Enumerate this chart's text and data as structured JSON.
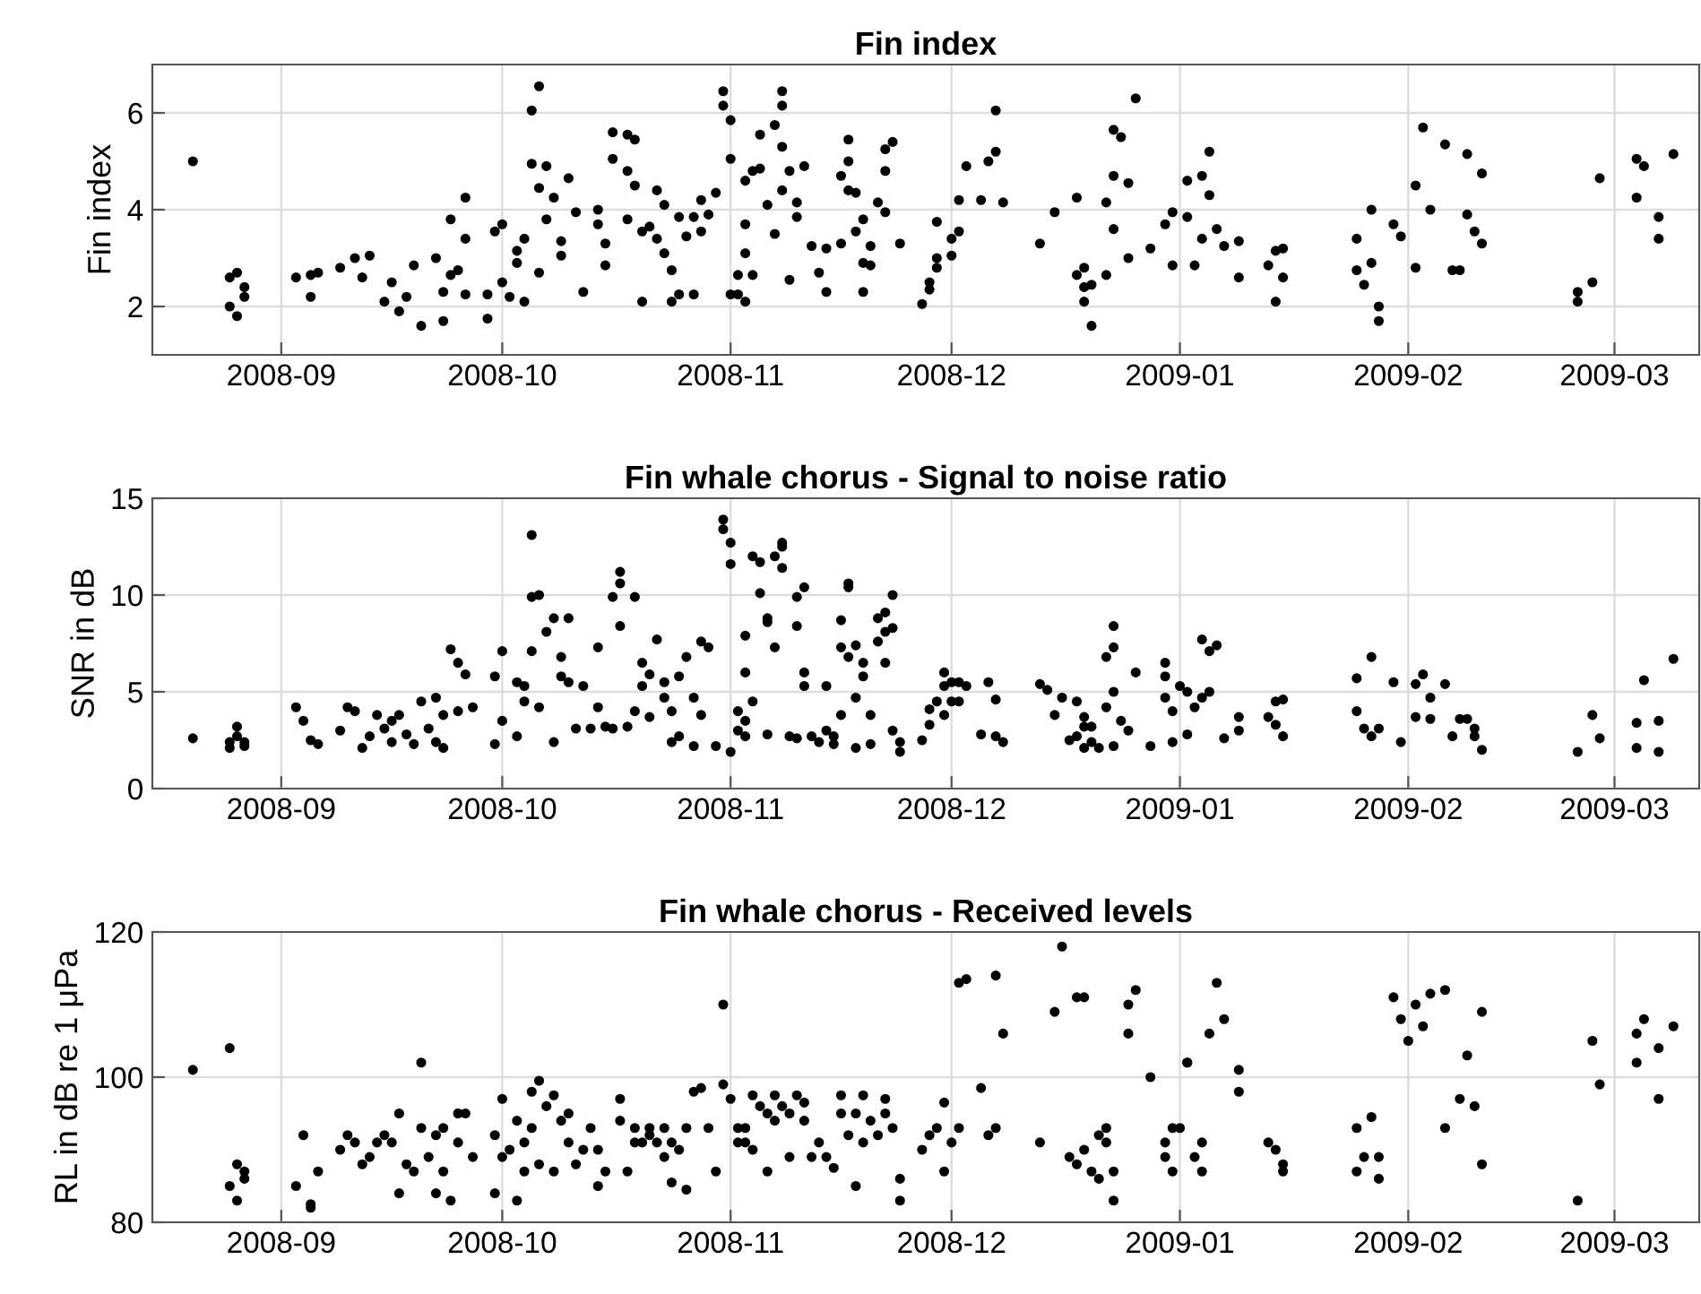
{
  "chart_data": [
    {
      "type": "scatter",
      "title": "Fin index",
      "ylabel": "Fin index",
      "xlim": [
        "2008-08-14T12:00",
        "2009-03-12T12:00"
      ],
      "ylim": [
        1,
        7
      ],
      "yticks": [
        2,
        4,
        6
      ],
      "xticks": [
        {
          "value": "2008-09-01",
          "label": "2008-09"
        },
        {
          "value": "2008-10-01",
          "label": "2008-10"
        },
        {
          "value": "2008-11-01",
          "label": "2008-11"
        },
        {
          "value": "2008-12-01",
          "label": "2008-12"
        },
        {
          "value": "2009-01-01",
          "label": "2009-01"
        },
        {
          "value": "2009-02-01",
          "label": "2009-02"
        },
        {
          "value": "2009-03-01",
          "label": "2009-03"
        }
      ],
      "grid": true,
      "marker": "circle",
      "series": [
        {
          "color": "#000000",
          "x": [
            "2008-08-20",
            "2008-08-25",
            "2008-08-27",
            "2008-08-27",
            "2008-08-25",
            "2008-08-26",
            "2008-08-26",
            "2008-09-03",
            "2008-09-05",
            "2008-09-06",
            "2008-09-05",
            "2008-09-09",
            "2008-09-11",
            "2008-09-13",
            "2008-09-12",
            "2008-09-15",
            "2008-09-16",
            "2008-09-17",
            "2008-09-18",
            "2008-09-19",
            "2008-09-20",
            "2008-09-22",
            "2008-09-23",
            "2008-09-23",
            "2008-09-24",
            "2008-09-24",
            "2008-09-25",
            "2008-09-26",
            "2008-09-26",
            "2008-09-26",
            "2008-09-29",
            "2008-09-29",
            "2008-09-30",
            "2008-10-01",
            "2008-10-01",
            "2008-10-02",
            "2008-10-03",
            "2008-10-03",
            "2008-10-04",
            "2008-10-04",
            "2008-10-05",
            "2008-10-05",
            "2008-10-06",
            "2008-10-06",
            "2008-10-06",
            "2008-10-07",
            "2008-10-07",
            "2008-10-08",
            "2008-10-09",
            "2008-10-09",
            "2008-10-10",
            "2008-10-11",
            "2008-10-12",
            "2008-10-14",
            "2008-10-14",
            "2008-10-15",
            "2008-10-15",
            "2008-10-16",
            "2008-10-16",
            "2008-10-18",
            "2008-10-18",
            "2008-10-19",
            "2008-10-19",
            "2008-10-18",
            "2008-10-20",
            "2008-10-20",
            "2008-10-21",
            "2008-10-22",
            "2008-10-22",
            "2008-10-23",
            "2008-10-23",
            "2008-10-24",
            "2008-10-24",
            "2008-10-25",
            "2008-10-25",
            "2008-10-26",
            "2008-10-27",
            "2008-10-27",
            "2008-10-28",
            "2008-10-28",
            "2008-10-29",
            "2008-10-30",
            "2008-10-31",
            "2008-10-31",
            "2008-11-01",
            "2008-11-01",
            "2008-11-01",
            "2008-11-02",
            "2008-11-02",
            "2008-11-03",
            "2008-11-03",
            "2008-11-03",
            "2008-11-04",
            "2008-11-03",
            "2008-11-04",
            "2008-11-05",
            "2008-11-05",
            "2008-11-06",
            "2008-11-07",
            "2008-11-07",
            "2008-11-08",
            "2008-11-08",
            "2008-11-08",
            "2008-11-08",
            "2008-11-09",
            "2008-11-09",
            "2008-11-10",
            "2008-11-10",
            "2008-11-11",
            "2008-11-12",
            "2008-11-13",
            "2008-11-14",
            "2008-11-14",
            "2008-11-16",
            "2008-11-16",
            "2008-11-17",
            "2008-11-17",
            "2008-11-17",
            "2008-11-18",
            "2008-11-18",
            "2008-11-19",
            "2008-11-19",
            "2008-11-20",
            "2008-11-20",
            "2008-11-19",
            "2008-11-21",
            "2008-11-22",
            "2008-11-22",
            "2008-11-22",
            "2008-11-23",
            "2008-11-24",
            "2008-11-27",
            "2008-11-28",
            "2008-11-29",
            "2008-11-29",
            "2008-11-28",
            "2008-11-29",
            "2008-12-01",
            "2008-12-01",
            "2008-12-02",
            "2008-12-02",
            "2008-12-03",
            "2008-12-05",
            "2008-12-06",
            "2008-12-07",
            "2008-12-07",
            "2008-12-08",
            "2008-12-13",
            "2008-12-15",
            "2008-12-18",
            "2008-12-18",
            "2008-12-19",
            "2008-12-19",
            "2008-12-19",
            "2008-12-20",
            "2008-12-20",
            "2008-12-22",
            "2008-12-22",
            "2008-12-23",
            "2008-12-23",
            "2008-12-23",
            "2008-12-24",
            "2008-12-25",
            "2008-12-25",
            "2008-12-26",
            "2008-12-28",
            "2008-12-30",
            "2008-12-31",
            "2008-12-31",
            "2009-01-02",
            "2009-01-02",
            "2009-01-03",
            "2009-01-04",
            "2009-01-04",
            "2009-01-05",
            "2009-01-05",
            "2009-01-06",
            "2009-01-07",
            "2009-01-09",
            "2009-01-09",
            "2009-01-14",
            "2009-01-13",
            "2009-01-14",
            "2009-01-15",
            "2009-01-15",
            "2009-01-25",
            "2009-01-25",
            "2009-01-26",
            "2009-01-27",
            "2009-01-27",
            "2009-01-28",
            "2009-01-28",
            "2009-01-30",
            "2009-01-31",
            "2009-02-02",
            "2009-02-02",
            "2009-02-03",
            "2009-02-04",
            "2009-02-06",
            "2009-02-07",
            "2009-02-08",
            "2009-02-09",
            "2009-02-09",
            "2009-02-10",
            "2009-02-11",
            "2009-02-11",
            "2009-02-24",
            "2009-02-24",
            "2009-02-26",
            "2009-02-27",
            "2009-03-04",
            "2009-03-04",
            "2009-03-05",
            "2009-03-07",
            "2009-03-07",
            "2009-03-09"
          ],
          "values": [
            5.0,
            2.6,
            2.4,
            2.2,
            2.0,
            1.8,
            2.7,
            2.6,
            2.65,
            2.7,
            2.2,
            2.8,
            3.0,
            3.05,
            2.6,
            2.1,
            2.5,
            1.9,
            2.2,
            2.85,
            1.6,
            3.0,
            1.7,
            2.3,
            2.65,
            3.8,
            2.75,
            4.25,
            2.25,
            3.4,
            2.25,
            1.75,
            3.55,
            3.7,
            2.5,
            2.2,
            2.9,
            3.15,
            2.1,
            3.4,
            4.95,
            6.05,
            4.45,
            6.55,
            2.7,
            4.9,
            3.8,
            4.25,
            3.05,
            3.35,
            4.65,
            3.95,
            2.3,
            3.7,
            4.0,
            3.3,
            2.85,
            5.05,
            5.6,
            5.55,
            4.8,
            5.45,
            4.5,
            3.8,
            3.55,
            2.1,
            3.65,
            3.4,
            4.4,
            4.1,
            3.1,
            2.1,
            2.75,
            3.85,
            2.25,
            3.45,
            2.25,
            3.85,
            4.2,
            3.55,
            3.9,
            4.35,
            6.45,
            6.15,
            5.85,
            5.05,
            2.25,
            2.25,
            2.65,
            3.7,
            3.1,
            2.1,
            2.65,
            4.6,
            4.8,
            5.55,
            4.85,
            4.1,
            3.5,
            5.75,
            4.4,
            6.45,
            6.15,
            5.3,
            4.8,
            2.55,
            4.15,
            3.85,
            4.9,
            3.25,
            2.7,
            3.2,
            2.3,
            3.3,
            4.7,
            5.0,
            5.45,
            4.4,
            3.55,
            4.35,
            3.8,
            2.9,
            3.25,
            2.85,
            2.3,
            4.15,
            4.8,
            5.25,
            3.95,
            5.4,
            3.3,
            2.05,
            2.35,
            2.8,
            3.75,
            2.5,
            3.0,
            3.05,
            3.4,
            3.55,
            4.2,
            4.9,
            4.2,
            5.0,
            6.05,
            5.2,
            4.15,
            3.3,
            3.95,
            4.25,
            2.65,
            2.8,
            2.4,
            2.1,
            1.6,
            2.45,
            2.65,
            4.15,
            4.7,
            3.6,
            5.65,
            5.5,
            4.55,
            3.0,
            6.3,
            3.2,
            3.7,
            3.95,
            2.85,
            3.85,
            4.6,
            2.85,
            3.4,
            4.7,
            5.2,
            4.3,
            3.6,
            3.25,
            3.35,
            2.6,
            2.1,
            2.85,
            3.15,
            2.6,
            3.2,
            3.4,
            2.75,
            2.45,
            4.0,
            2.9,
            2.0,
            1.7,
            3.7,
            3.45,
            4.5,
            2.8,
            5.7,
            4.0,
            5.35,
            2.75,
            2.75,
            5.15,
            3.9,
            3.55,
            3.3,
            4.75,
            2.3,
            2.1,
            2.5,
            4.65,
            5.05,
            4.25,
            4.9,
            3.85,
            3.4,
            5.15
          ]
        }
      ]
    },
    {
      "type": "scatter",
      "title": "Fin whale chorus - Signal to noise ratio",
      "ylabel": "SNR in dB",
      "xlim": [
        "2008-08-14T12:00",
        "2009-03-12T12:00"
      ],
      "ylim": [
        0,
        15
      ],
      "yticks": [
        0,
        5,
        10,
        15
      ],
      "xticks": [
        {
          "value": "2008-09-01",
          "label": "2008-09"
        },
        {
          "value": "2008-10-01",
          "label": "2008-10"
        },
        {
          "value": "2008-11-01",
          "label": "2008-11"
        },
        {
          "value": "2008-12-01",
          "label": "2008-12"
        },
        {
          "value": "2009-01-01",
          "label": "2009-01"
        },
        {
          "value": "2009-02-01",
          "label": "2009-02"
        },
        {
          "value": "2009-03-01",
          "label": "2009-03"
        }
      ],
      "grid": true,
      "marker": "circle",
      "series": [
        {
          "color": "#000000",
          "x": [
            "2008-08-20",
            "2008-08-25",
            "2008-08-25",
            "2008-08-26",
            "2008-08-26",
            "2008-08-27",
            "2008-08-27",
            "2008-09-03",
            "2008-09-04",
            "2008-09-05",
            "2008-09-06",
            "2008-09-09",
            "2008-09-10",
            "2008-09-11",
            "2008-09-12",
            "2008-09-13",
            "2008-09-14",
            "2008-09-15",
            "2008-09-16",
            "2008-09-16",
            "2008-09-17",
            "2008-09-18",
            "2008-09-19",
            "2008-09-20",
            "2008-09-21",
            "2008-09-22",
            "2008-09-22",
            "2008-09-23",
            "2008-09-23",
            "2008-09-24",
            "2008-09-25",
            "2008-09-25",
            "2008-09-26",
            "2008-09-27",
            "2008-09-30",
            "2008-09-30",
            "2008-10-01",
            "2008-10-01",
            "2008-10-03",
            "2008-10-03",
            "2008-10-04",
            "2008-10-04",
            "2008-10-05",
            "2008-10-05",
            "2008-10-05",
            "2008-10-06",
            "2008-10-06",
            "2008-10-07",
            "2008-10-08",
            "2008-10-08",
            "2008-10-09",
            "2008-10-09",
            "2008-10-10",
            "2008-10-10",
            "2008-10-11",
            "2008-10-12",
            "2008-10-13",
            "2008-10-14",
            "2008-10-14",
            "2008-10-15",
            "2008-10-16",
            "2008-10-16",
            "2008-10-17",
            "2008-10-17",
            "2008-10-17",
            "2008-10-18",
            "2008-10-19",
            "2008-10-19",
            "2008-10-20",
            "2008-10-20",
            "2008-10-21",
            "2008-10-21",
            "2008-10-22",
            "2008-10-23",
            "2008-10-23",
            "2008-10-24",
            "2008-10-24",
            "2008-10-25",
            "2008-10-25",
            "2008-10-26",
            "2008-10-27",
            "2008-10-27",
            "2008-10-28",
            "2008-10-28",
            "2008-10-29",
            "2008-10-30",
            "2008-10-31",
            "2008-10-31",
            "2008-11-01",
            "2008-11-01",
            "2008-11-01",
            "2008-11-02",
            "2008-11-02",
            "2008-11-03",
            "2008-11-03",
            "2008-11-03",
            "2008-11-03",
            "2008-11-04",
            "2008-11-04",
            "2008-11-05",
            "2008-11-05",
            "2008-11-06",
            "2008-11-06",
            "2008-11-06",
            "2008-11-07",
            "2008-11-07",
            "2008-11-08",
            "2008-11-08",
            "2008-11-08",
            "2008-11-09",
            "2008-11-10",
            "2008-11-10",
            "2008-11-10",
            "2008-11-11",
            "2008-11-11",
            "2008-11-11",
            "2008-11-12",
            "2008-11-13",
            "2008-11-14",
            "2008-11-14",
            "2008-11-15",
            "2008-11-15",
            "2008-11-16",
            "2008-11-16",
            "2008-11-16",
            "2008-11-17",
            "2008-11-17",
            "2008-11-17",
            "2008-11-18",
            "2008-11-18",
            "2008-11-18",
            "2008-11-19",
            "2008-11-19",
            "2008-11-20",
            "2008-11-20",
            "2008-11-21",
            "2008-11-21",
            "2008-11-22",
            "2008-11-22",
            "2008-11-22",
            "2008-11-23",
            "2008-11-23",
            "2008-11-23",
            "2008-11-24",
            "2008-11-24",
            "2008-11-27",
            "2008-11-28",
            "2008-11-28",
            "2008-11-29",
            "2008-11-30",
            "2008-11-30",
            "2008-11-30",
            "2008-12-01",
            "2008-12-01",
            "2008-12-02",
            "2008-12-02",
            "2008-12-03",
            "2008-12-05",
            "2008-12-06",
            "2008-12-07",
            "2008-12-07",
            "2008-12-08",
            "2008-12-13",
            "2008-12-14",
            "2008-12-15",
            "2008-12-16",
            "2008-12-17",
            "2008-12-18",
            "2008-12-18",
            "2008-12-19",
            "2008-12-19",
            "2008-12-19",
            "2008-12-20",
            "2008-12-20",
            "2008-12-21",
            "2008-12-22",
            "2008-12-22",
            "2008-12-23",
            "2008-12-23",
            "2008-12-23",
            "2008-12-23",
            "2008-12-24",
            "2008-12-25",
            "2008-12-26",
            "2008-12-28",
            "2008-12-30",
            "2008-12-30",
            "2008-12-30",
            "2008-12-31",
            "2008-12-31",
            "2009-01-01",
            "2009-01-02",
            "2009-01-02",
            "2009-01-03",
            "2009-01-04",
            "2009-01-04",
            "2009-01-05",
            "2009-01-05",
            "2009-01-06",
            "2009-01-07",
            "2009-01-09",
            "2009-01-09",
            "2009-01-13",
            "2009-01-14",
            "2009-01-14",
            "2009-01-15",
            "2009-01-15",
            "2009-01-25",
            "2009-01-25",
            "2009-01-26",
            "2009-01-27",
            "2009-01-27",
            "2009-01-28",
            "2009-01-30",
            "2009-01-31",
            "2009-02-02",
            "2009-02-02",
            "2009-02-03",
            "2009-02-04",
            "2009-02-04",
            "2009-02-06",
            "2009-02-07",
            "2009-02-08",
            "2009-02-09",
            "2009-02-10",
            "2009-02-10",
            "2009-02-11",
            "2009-02-24",
            "2009-02-26",
            "2009-02-27",
            "2009-03-04",
            "2009-03-04",
            "2009-03-05",
            "2009-03-07",
            "2009-03-07",
            "2009-03-09"
          ],
          "values": [
            2.6,
            2.1,
            2.4,
            3.2,
            2.7,
            2.2,
            2.4,
            4.2,
            3.5,
            2.5,
            2.3,
            3.0,
            4.2,
            4.0,
            2.1,
            2.7,
            3.8,
            3.1,
            3.5,
            2.4,
            3.8,
            2.8,
            2.3,
            4.5,
            3.1,
            4.7,
            2.4,
            3.8,
            2.1,
            7.2,
            4.0,
            6.5,
            5.9,
            4.2,
            2.3,
            5.8,
            7.1,
            3.5,
            2.7,
            5.5,
            4.5,
            5.3,
            7.1,
            9.9,
            13.1,
            10.0,
            4.2,
            8.1,
            8.8,
            2.4,
            6.8,
            5.8,
            8.8,
            5.5,
            3.1,
            5.3,
            3.1,
            7.3,
            4.2,
            3.2,
            3.1,
            9.9,
            10.6,
            11.2,
            8.4,
            3.2,
            9.9,
            4.0,
            5.3,
            6.5,
            5.9,
            3.7,
            7.7,
            5.5,
            4.7,
            2.4,
            4.0,
            5.8,
            2.7,
            6.8,
            4.7,
            2.2,
            7.6,
            3.8,
            7.3,
            2.2,
            13.9,
            13.4,
            12.7,
            11.6,
            1.9,
            4.0,
            3.0,
            3.5,
            2.7,
            6.0,
            7.9,
            4.5,
            12.0,
            11.7,
            10.1,
            8.8,
            8.6,
            2.8,
            12.0,
            7.3,
            12.7,
            12.5,
            11.4,
            2.7,
            9.9,
            2.6,
            8.4,
            6.0,
            10.4,
            5.3,
            2.7,
            2.4,
            3.0,
            5.3,
            2.7,
            2.3,
            7.3,
            8.7,
            3.8,
            10.4,
            10.6,
            6.8,
            2.1,
            7.4,
            4.7,
            6.5,
            5.8,
            2.3,
            3.8,
            7.6,
            8.8,
            9.1,
            8.1,
            6.5,
            8.3,
            10.0,
            3.0,
            1.9,
            2.4,
            2.5,
            3.3,
            4.1,
            4.5,
            6.0,
            3.8,
            5.3,
            5.5,
            4.5,
            5.5,
            4.5,
            5.3,
            2.8,
            5.5,
            4.6,
            2.7,
            2.4,
            5.4,
            5.1,
            3.8,
            4.7,
            2.5,
            4.5,
            2.7,
            3.7,
            3.2,
            2.1,
            3.2,
            2.4,
            2.1,
            4.2,
            6.8,
            8.4,
            7.3,
            5.0,
            2.2,
            3.5,
            3.0,
            6.0,
            2.2,
            5.8,
            6.5,
            4.7,
            4.0,
            2.4,
            5.3,
            2.8,
            5.0,
            4.2,
            4.7,
            7.7,
            7.1,
            5.0,
            7.4,
            2.6,
            3.7,
            3.0,
            3.7,
            4.5,
            3.3,
            2.7,
            4.6,
            5.7,
            4.0,
            3.1,
            6.8,
            2.7,
            3.1,
            5.5,
            2.4,
            5.4,
            3.7,
            5.9,
            4.7,
            3.6,
            5.4,
            2.7,
            3.6,
            3.6,
            3.1,
            2.7,
            2.0,
            1.9,
            3.8,
            2.6,
            3.4,
            2.1,
            5.6,
            3.5,
            1.9,
            6.7
          ]
        }
      ]
    },
    {
      "type": "scatter",
      "title": "Fin whale chorus - Received levels",
      "ylabel": "RL in dB re 1 μPa",
      "xlim": [
        "2008-08-14T12:00",
        "2009-03-12T12:00"
      ],
      "ylim": [
        80,
        120
      ],
      "yticks": [
        80,
        100,
        120
      ],
      "xticks": [
        {
          "value": "2008-09-01",
          "label": "2008-09"
        },
        {
          "value": "2008-10-01",
          "label": "2008-10"
        },
        {
          "value": "2008-11-01",
          "label": "2008-11"
        },
        {
          "value": "2008-12-01",
          "label": "2008-12"
        },
        {
          "value": "2009-01-01",
          "label": "2009-01"
        },
        {
          "value": "2009-02-01",
          "label": "2009-02"
        },
        {
          "value": "2009-03-01",
          "label": "2009-03"
        }
      ],
      "grid": true,
      "marker": "circle",
      "series": [
        {
          "color": "#000000",
          "x": [
            "2008-08-20",
            "2008-08-25",
            "2008-08-25",
            "2008-08-26",
            "2008-08-26",
            "2008-08-27",
            "2008-08-27",
            "2008-09-03",
            "2008-09-04",
            "2008-09-05",
            "2008-09-05",
            "2008-09-06",
            "2008-09-09",
            "2008-09-10",
            "2008-09-11",
            "2008-09-12",
            "2008-09-13",
            "2008-09-14",
            "2008-09-15",
            "2008-09-16",
            "2008-09-17",
            "2008-09-17",
            "2008-09-18",
            "2008-09-19",
            "2008-09-20",
            "2008-09-20",
            "2008-09-21",
            "2008-09-22",
            "2008-09-22",
            "2008-09-23",
            "2008-09-23",
            "2008-09-24",
            "2008-09-25",
            "2008-09-25",
            "2008-09-26",
            "2008-09-27",
            "2008-09-30",
            "2008-09-30",
            "2008-10-01",
            "2008-10-01",
            "2008-10-02",
            "2008-10-03",
            "2008-10-03",
            "2008-10-04",
            "2008-10-04",
            "2008-10-05",
            "2008-10-05",
            "2008-10-06",
            "2008-10-06",
            "2008-10-07",
            "2008-10-08",
            "2008-10-08",
            "2008-10-09",
            "2008-10-10",
            "2008-10-10",
            "2008-10-11",
            "2008-10-12",
            "2008-10-13",
            "2008-10-14",
            "2008-10-14",
            "2008-10-15",
            "2008-10-17",
            "2008-10-17",
            "2008-10-18",
            "2008-10-19",
            "2008-10-19",
            "2008-10-20",
            "2008-10-21",
            "2008-10-21",
            "2008-10-22",
            "2008-10-23",
            "2008-10-23",
            "2008-10-24",
            "2008-10-24",
            "2008-10-25",
            "2008-10-26",
            "2008-10-26",
            "2008-10-27",
            "2008-10-28",
            "2008-10-29",
            "2008-10-30",
            "2008-10-31",
            "2008-10-31",
            "2008-11-01",
            "2008-11-02",
            "2008-11-02",
            "2008-11-03",
            "2008-11-03",
            "2008-11-04",
            "2008-11-04",
            "2008-11-05",
            "2008-11-06",
            "2008-11-06",
            "2008-11-07",
            "2008-11-07",
            "2008-11-08",
            "2008-11-09",
            "2008-11-09",
            "2008-11-10",
            "2008-11-11",
            "2008-11-11",
            "2008-11-12",
            "2008-11-13",
            "2008-11-14",
            "2008-11-15",
            "2008-11-16",
            "2008-11-16",
            "2008-11-17",
            "2008-11-18",
            "2008-11-18",
            "2008-11-19",
            "2008-11-19",
            "2008-11-20",
            "2008-11-21",
            "2008-11-22",
            "2008-11-22",
            "2008-11-23",
            "2008-11-24",
            "2008-11-24",
            "2008-11-27",
            "2008-11-28",
            "2008-11-29",
            "2008-11-30",
            "2008-11-30",
            "2008-12-01",
            "2008-12-02",
            "2008-12-02",
            "2008-12-03",
            "2008-12-05",
            "2008-12-06",
            "2008-12-07",
            "2008-12-07",
            "2008-12-08",
            "2008-12-13",
            "2008-12-15",
            "2008-12-16",
            "2008-12-17",
            "2008-12-18",
            "2008-12-18",
            "2008-12-19",
            "2008-12-19",
            "2008-12-20",
            "2008-12-21",
            "2008-12-21",
            "2008-12-22",
            "2008-12-22",
            "2008-12-23",
            "2008-12-23",
            "2008-12-25",
            "2008-12-25",
            "2008-12-26",
            "2008-12-28",
            "2008-12-30",
            "2008-12-30",
            "2008-12-31",
            "2008-12-31",
            "2009-01-01",
            "2009-01-02",
            "2009-01-02",
            "2009-01-03",
            "2009-01-04",
            "2009-01-04",
            "2009-01-05",
            "2009-01-06",
            "2009-01-07",
            "2009-01-09",
            "2009-01-09",
            "2009-01-13",
            "2009-01-14",
            "2009-01-15",
            "2009-01-15",
            "2009-01-25",
            "2009-01-25",
            "2009-01-26",
            "2009-01-27",
            "2009-01-28",
            "2009-01-28",
            "2009-01-30",
            "2009-01-31",
            "2009-02-01",
            "2009-02-02",
            "2009-02-03",
            "2009-02-04",
            "2009-02-06",
            "2009-02-06",
            "2009-02-08",
            "2009-02-09",
            "2009-02-10",
            "2009-02-11",
            "2009-02-11",
            "2009-02-24",
            "2009-02-26",
            "2009-02-27",
            "2009-03-04",
            "2009-03-04",
            "2009-03-05",
            "2009-03-07",
            "2009-03-07",
            "2009-03-09"
          ],
          "values": [
            101,
            104,
            85,
            88,
            83,
            87,
            86,
            85,
            92,
            82,
            82.5,
            87,
            90,
            92,
            91,
            88,
            89,
            91,
            92,
            91,
            84,
            95,
            88,
            87,
            93,
            102,
            89,
            92,
            84,
            87,
            93,
            83,
            91,
            95,
            95,
            89,
            84,
            92,
            97,
            89,
            90,
            83,
            94,
            87,
            91,
            93,
            98,
            99.5,
            88,
            96,
            97.5,
            87,
            94,
            95,
            91,
            88,
            90,
            93,
            90,
            85,
            87,
            97,
            94,
            87,
            93,
            91,
            91,
            93,
            92,
            91,
            93,
            89,
            85.5,
            91,
            90,
            84.5,
            93,
            98,
            98.5,
            93,
            87,
            99,
            110,
            97,
            91,
            93,
            91,
            93,
            90,
            97.5,
            96,
            95,
            87,
            97.5,
            94,
            96,
            95,
            89,
            97.5,
            94,
            96.5,
            89,
            91,
            89,
            87.5,
            95,
            97.5,
            92,
            85,
            95,
            97.5,
            91,
            94,
            92,
            97,
            95,
            93,
            86,
            83,
            90,
            92,
            93,
            96.5,
            87,
            91,
            93,
            113,
            113.5,
            98.5,
            92,
            114,
            93,
            106,
            91,
            109,
            118,
            89,
            111,
            88,
            111,
            90,
            87,
            92,
            86,
            93,
            91,
            83,
            87,
            106,
            110,
            112,
            100,
            91,
            89,
            93,
            87,
            93,
            102,
            102,
            89,
            91,
            87,
            106,
            113,
            108,
            101,
            98,
            91,
            90,
            88,
            87,
            87,
            93,
            89,
            94.5,
            86,
            89,
            111,
            108,
            105,
            110,
            107,
            111.5,
            112,
            93,
            97,
            103,
            96,
            109,
            88,
            83,
            105,
            99,
            102,
            106,
            108,
            97,
            104,
            107
          ]
        }
      ]
    }
  ]
}
